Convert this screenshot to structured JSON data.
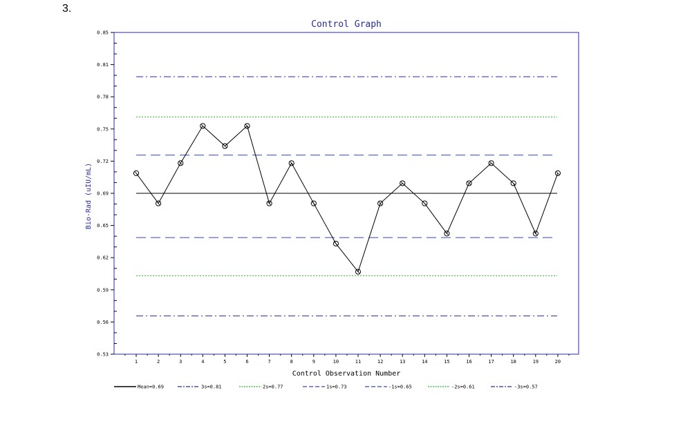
{
  "question_number": "3.",
  "chart_data": {
    "type": "line",
    "title": "Control Graph",
    "xlabel": "Control Observation Number",
    "ylabel": "Bio-Rad (uIU/mL)",
    "ylim": [
      0.53,
      0.85
    ],
    "xlim": [
      0,
      21
    ],
    "y_ticks": [
      "0.85",
      "0.81",
      "0.78",
      "0.75",
      "0.72",
      "0.69",
      "0.65",
      "0.62",
      "0.59",
      "0.56",
      "0.53"
    ],
    "x_ticks": [
      "1",
      "2",
      "3",
      "4",
      "5",
      "6",
      "7",
      "8",
      "9",
      "10",
      "11",
      "12",
      "13",
      "14",
      "15",
      "16",
      "17",
      "18",
      "19",
      "20"
    ],
    "series": [
      {
        "x": [
          1,
          2,
          3,
          4,
          5,
          6,
          7,
          8,
          9,
          10,
          11,
          12,
          13,
          14,
          15,
          16,
          17,
          18,
          19,
          20
        ],
        "values": [
          0.71,
          0.68,
          0.72,
          0.757,
          0.737,
          0.757,
          0.68,
          0.72,
          0.68,
          0.64,
          0.612,
          0.68,
          0.7,
          0.68,
          0.65,
          0.7,
          0.72,
          0.7,
          0.65,
          0.71
        ],
        "color": "#000000"
      }
    ],
    "control_lines": [
      {
        "label": "Mean=0.69",
        "value": 0.69,
        "color": "#000000",
        "style": "solid"
      },
      {
        "label": "3s=0.81",
        "value": 0.806,
        "color": "#2a2aa0",
        "style": "dashdot"
      },
      {
        "label": "2s=0.77",
        "value": 0.766,
        "color": "#22bb22",
        "style": "dotted"
      },
      {
        "label": "1s=0.73",
        "value": 0.728,
        "color": "#3344cc",
        "style": "dashed"
      },
      {
        "label": "-1s=0.65",
        "value": 0.646,
        "color": "#3344cc",
        "style": "dashed"
      },
      {
        "label": "-2s=0.61",
        "value": 0.608,
        "color": "#22bb22",
        "style": "dotted"
      },
      {
        "label": "-3s=0.57",
        "value": 0.568,
        "color": "#2a2aa0",
        "style": "dashdot"
      }
    ],
    "legend_position": "bottom",
    "grid": false
  }
}
